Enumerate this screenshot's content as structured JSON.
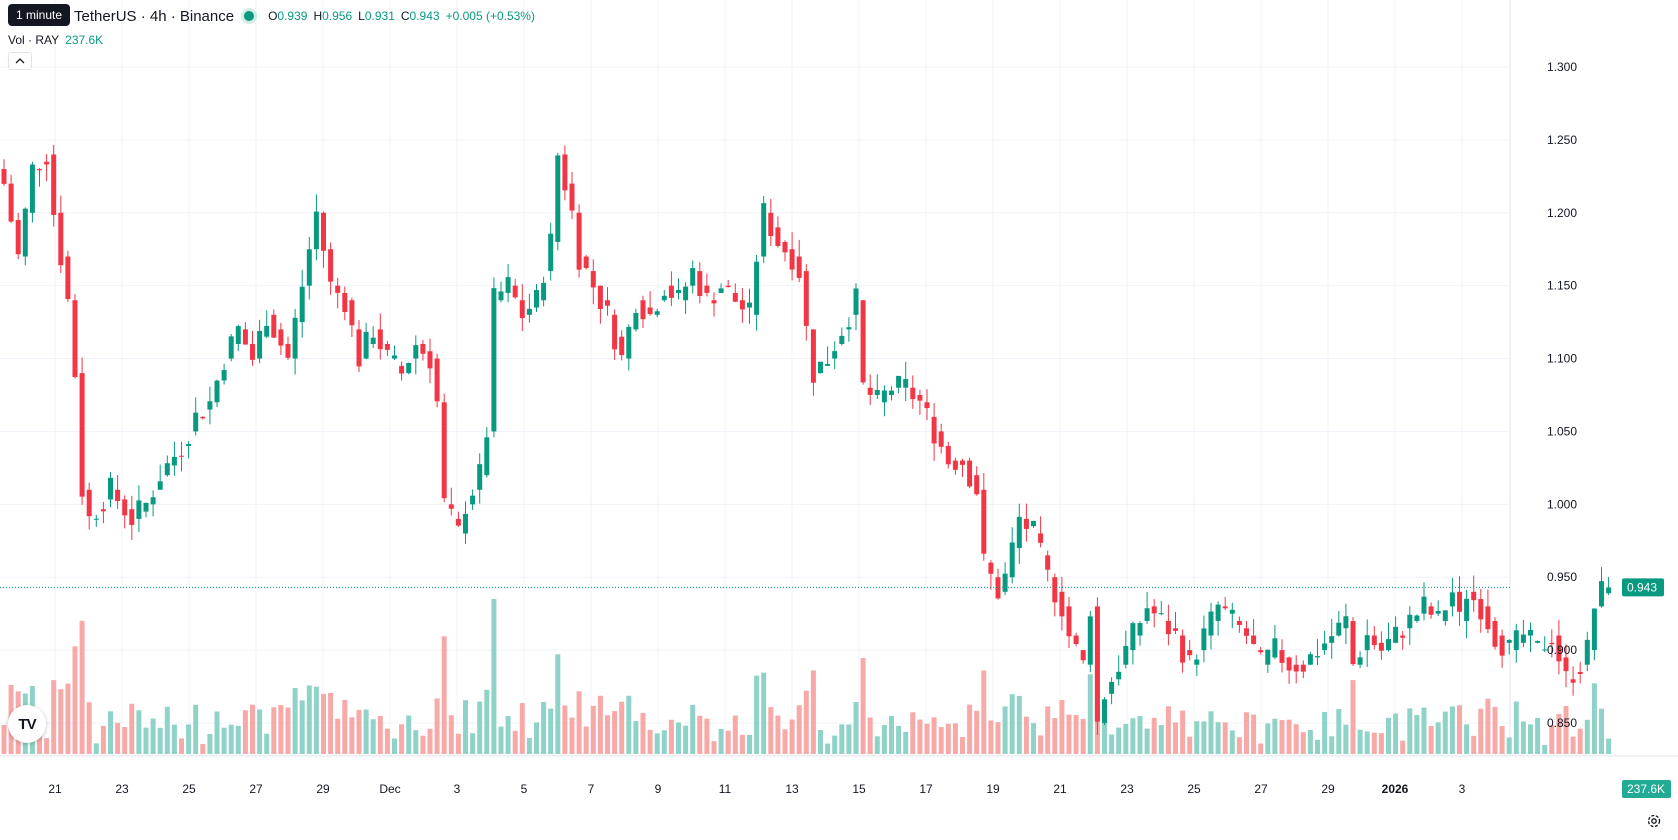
{
  "header": {
    "tooltip": "1 minute",
    "symbol": "TetherUS · 4h · Binance",
    "o_label": "O",
    "o_value": "0.939",
    "h_label": "H",
    "h_value": "0.956",
    "l_label": "L",
    "l_value": "0.931",
    "c_label": "C",
    "c_value": "0.943",
    "change": "+0.005 (+0.53%)"
  },
  "volume_legend": {
    "label": "Vol · RAY",
    "value": "237.6K"
  },
  "price_tag": "0.943",
  "volume_tag": "237.6K",
  "logo_text": "TV",
  "icons": {
    "collapse": "chevron-up-icon",
    "settings": "gear-icon",
    "logo": "tradingview-logo-icon"
  },
  "colors": {
    "up": "#089981",
    "down": "#F23645",
    "up_volume": "#8fd3c8",
    "down_volume": "#f7a9a7",
    "grid": "#f0f3fa"
  },
  "chart_data": {
    "type": "candlestick",
    "interval": "4h",
    "ylim": [
      0.825,
      1.315
    ],
    "y_ticks": [
      "1.300",
      "1.250",
      "1.200",
      "1.150",
      "1.100",
      "1.050",
      "1.000",
      "0.950",
      "0.900",
      "0.850"
    ],
    "y_tick_values": [
      1.3,
      1.25,
      1.2,
      1.15,
      1.1,
      1.05,
      1.0,
      0.95,
      0.9,
      0.85
    ],
    "x_ticks": [
      "21",
      "23",
      "25",
      "27",
      "29",
      "Dec",
      "3",
      "5",
      "7",
      "9",
      "11",
      "13",
      "15",
      "17",
      "19",
      "21",
      "23",
      "25",
      "27",
      "29",
      "2026",
      "3"
    ],
    "last_price": 0.943,
    "close_path": [
      [
        0,
        1.22
      ],
      [
        2,
        1.17
      ],
      [
        4,
        1.23
      ],
      [
        6,
        1.24
      ],
      [
        7,
        1.2
      ],
      [
        9,
        1.14
      ],
      [
        10,
        1.09
      ],
      [
        11,
        1.01
      ],
      [
        12,
        0.99
      ],
      [
        15,
        1.01
      ],
      [
        18,
        0.99
      ],
      [
        20,
        1.0
      ],
      [
        22,
        1.02
      ],
      [
        25,
        1.04
      ],
      [
        27,
        1.06
      ],
      [
        29,
        1.07
      ],
      [
        31,
        1.1
      ],
      [
        33,
        1.12
      ],
      [
        35,
        1.1
      ],
      [
        37,
        1.13
      ],
      [
        40,
        1.1
      ],
      [
        42,
        1.15
      ],
      [
        44,
        1.2
      ],
      [
        46,
        1.15
      ],
      [
        48,
        1.14
      ],
      [
        50,
        1.1
      ],
      [
        52,
        1.12
      ],
      [
        54,
        1.1
      ],
      [
        56,
        1.09
      ],
      [
        58,
        1.11
      ],
      [
        60,
        1.1
      ],
      [
        61,
        1.07
      ],
      [
        62,
        1.0
      ],
      [
        64,
        0.98
      ],
      [
        65,
        1.0
      ],
      [
        67,
        1.02
      ],
      [
        68,
        1.05
      ],
      [
        69,
        1.14
      ],
      [
        71,
        1.15
      ],
      [
        73,
        1.13
      ],
      [
        75,
        1.14
      ],
      [
        76,
        1.16
      ],
      [
        77,
        1.18
      ],
      [
        78,
        1.24
      ],
      [
        80,
        1.2
      ],
      [
        81,
        1.17
      ],
      [
        83,
        1.15
      ],
      [
        85,
        1.13
      ],
      [
        87,
        1.1
      ],
      [
        89,
        1.14
      ],
      [
        91,
        1.13
      ],
      [
        93,
        1.15
      ],
      [
        95,
        1.14
      ],
      [
        97,
        1.16
      ],
      [
        99,
        1.14
      ],
      [
        101,
        1.15
      ],
      [
        103,
        1.14
      ],
      [
        105,
        1.13
      ],
      [
        106,
        1.17
      ],
      [
        107,
        1.2
      ],
      [
        109,
        1.18
      ],
      [
        111,
        1.17
      ],
      [
        112,
        1.16
      ],
      [
        113,
        1.12
      ],
      [
        114,
        1.09
      ],
      [
        116,
        1.1
      ],
      [
        118,
        1.12
      ],
      [
        120,
        1.14
      ],
      [
        121,
        1.08
      ],
      [
        123,
        1.07
      ],
      [
        125,
        1.08
      ],
      [
        127,
        1.08
      ],
      [
        129,
        1.07
      ],
      [
        131,
        1.05
      ],
      [
        133,
        1.03
      ],
      [
        135,
        1.03
      ],
      [
        137,
        1.01
      ],
      [
        138,
        0.96
      ],
      [
        140,
        0.94
      ],
      [
        141,
        0.95
      ],
      [
        142,
        0.97
      ],
      [
        143,
        0.99
      ],
      [
        145,
        0.98
      ],
      [
        147,
        0.95
      ],
      [
        149,
        0.93
      ],
      [
        150,
        0.91
      ],
      [
        152,
        0.89
      ],
      [
        153,
        0.93
      ],
      [
        154,
        0.85
      ],
      [
        155,
        0.87
      ],
      [
        157,
        0.89
      ],
      [
        159,
        0.91
      ],
      [
        161,
        0.93
      ],
      [
        163,
        0.92
      ],
      [
        165,
        0.91
      ],
      [
        167,
        0.89
      ],
      [
        169,
        0.91
      ],
      [
        171,
        0.93
      ],
      [
        173,
        0.92
      ],
      [
        175,
        0.91
      ],
      [
        177,
        0.89
      ],
      [
        179,
        0.9
      ],
      [
        181,
        0.89
      ],
      [
        183,
        0.89
      ],
      [
        185,
        0.9
      ],
      [
        187,
        0.91
      ],
      [
        189,
        0.92
      ],
      [
        190,
        0.89
      ],
      [
        192,
        0.91
      ],
      [
        194,
        0.9
      ],
      [
        196,
        0.91
      ],
      [
        198,
        0.92
      ],
      [
        200,
        0.93
      ],
      [
        202,
        0.92
      ],
      [
        204,
        0.94
      ],
      [
        205,
        0.92
      ],
      [
        206,
        0.94
      ],
      [
        208,
        0.93
      ],
      [
        210,
        0.91
      ],
      [
        212,
        0.9
      ],
      [
        214,
        0.91
      ],
      [
        216,
        0.9
      ],
      [
        218,
        0.91
      ],
      [
        220,
        0.88
      ],
      [
        222,
        0.89
      ],
      [
        223,
        0.9
      ],
      [
        224,
        0.93
      ],
      [
        225,
        0.94
      ],
      [
        226,
        0.943
      ]
    ],
    "volume_range": "0 – 237.6K"
  }
}
